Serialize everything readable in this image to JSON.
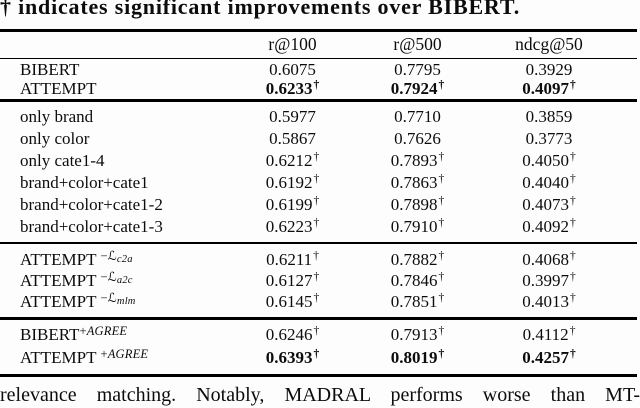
{
  "caption": "† indicates significant improvements over BIBERT.",
  "bottom_text": "relevance matching. Notably, MADRAL performs worse than MT-",
  "colors": {
    "text": "#0c0c0c",
    "background": "#fdfdfd",
    "rule": "#000000"
  },
  "table": {
    "dagger": "†",
    "columns": [
      "",
      "r@100",
      "r@500",
      "ndcg@50"
    ],
    "sections": [
      {
        "rows": [
          {
            "label": {
              "base": "BIBERT"
            },
            "cells": [
              {
                "v": "0.6075"
              },
              {
                "v": "0.7795"
              },
              {
                "v": "0.3929"
              }
            ]
          },
          {
            "label": {
              "base": "ATTEMPT"
            },
            "cells": [
              {
                "v": "0.6233",
                "dagger": true,
                "bold": true
              },
              {
                "v": "0.7924",
                "dagger": true,
                "bold": true
              },
              {
                "v": "0.4097",
                "dagger": true,
                "bold": true
              }
            ]
          }
        ]
      },
      {
        "rows": [
          {
            "label": {
              "base": "only brand"
            },
            "cells": [
              {
                "v": "0.5977"
              },
              {
                "v": "0.7710"
              },
              {
                "v": "0.3859"
              }
            ]
          },
          {
            "label": {
              "base": "only color"
            },
            "cells": [
              {
                "v": "0.5867"
              },
              {
                "v": "0.7626"
              },
              {
                "v": "0.3773"
              }
            ]
          },
          {
            "label": {
              "base": "only cate1-4"
            },
            "cells": [
              {
                "v": "0.6212",
                "dagger": true
              },
              {
                "v": "0.7893",
                "dagger": true
              },
              {
                "v": "0.4050",
                "dagger": true
              }
            ]
          },
          {
            "label": {
              "base": "brand+color+cate1"
            },
            "cells": [
              {
                "v": "0.6192",
                "dagger": true
              },
              {
                "v": "0.7863",
                "dagger": true
              },
              {
                "v": "0.4040",
                "dagger": true
              }
            ]
          },
          {
            "label": {
              "base": "brand+color+cate1-2"
            },
            "cells": [
              {
                "v": "0.6199",
                "dagger": true
              },
              {
                "v": "0.7898",
                "dagger": true
              },
              {
                "v": "0.4073",
                "dagger": true
              }
            ]
          },
          {
            "label": {
              "base": "brand+color+cate1-3"
            },
            "cells": [
              {
                "v": "0.6223",
                "dagger": true
              },
              {
                "v": "0.7910",
                "dagger": true
              },
              {
                "v": "0.4092",
                "dagger": true
              }
            ]
          }
        ]
      },
      {
        "rows": [
          {
            "label": {
              "base": "ATTEMPT ",
              "sup": [
                {
                  "t": "−",
                  "s": "plain"
                },
                {
                  "t": "ℒ",
                  "s": "script"
                },
                {
                  "t": "c2a",
                  "s": "subit"
                }
              ]
            },
            "cells": [
              {
                "v": "0.6211",
                "dagger": true
              },
              {
                "v": "0.7882",
                "dagger": true
              },
              {
                "v": "0.4068",
                "dagger": true
              }
            ]
          },
          {
            "label": {
              "base": "ATTEMPT ",
              "sup": [
                {
                  "t": "−",
                  "s": "plain"
                },
                {
                  "t": "ℒ",
                  "s": "script"
                },
                {
                  "t": "a2c",
                  "s": "subit"
                }
              ]
            },
            "cells": [
              {
                "v": "0.6127",
                "dagger": true
              },
              {
                "v": "0.7846",
                "dagger": true
              },
              {
                "v": "0.3997",
                "dagger": true
              }
            ]
          },
          {
            "label": {
              "base": "ATTEMPT ",
              "sup": [
                {
                  "t": "−",
                  "s": "plain"
                },
                {
                  "t": "ℒ",
                  "s": "script"
                },
                {
                  "t": "mlm",
                  "s": "subit"
                }
              ]
            },
            "cells": [
              {
                "v": "0.6145",
                "dagger": true
              },
              {
                "v": "0.7851",
                "dagger": true
              },
              {
                "v": "0.4013",
                "dagger": true
              }
            ]
          }
        ]
      },
      {
        "rows": [
          {
            "label": {
              "base": "BIBERT",
              "sup": [
                {
                  "t": "+",
                  "s": "plain"
                },
                {
                  "t": "AGREE",
                  "s": "it"
                }
              ]
            },
            "cells": [
              {
                "v": "0.6246",
                "dagger": true
              },
              {
                "v": "0.7913",
                "dagger": true
              },
              {
                "v": "0.4112",
                "dagger": true
              }
            ]
          },
          {
            "label": {
              "base": "ATTEMPT ",
              "sup": [
                {
                  "t": "+",
                  "s": "plain"
                },
                {
                  "t": "AGREE",
                  "s": "it"
                }
              ]
            },
            "cells": [
              {
                "v": "0.6393",
                "dagger": true,
                "bold": true
              },
              {
                "v": "0.8019",
                "dagger": true,
                "bold": true
              },
              {
                "v": "0.4257",
                "dagger": true,
                "bold": true
              }
            ]
          }
        ]
      }
    ]
  }
}
